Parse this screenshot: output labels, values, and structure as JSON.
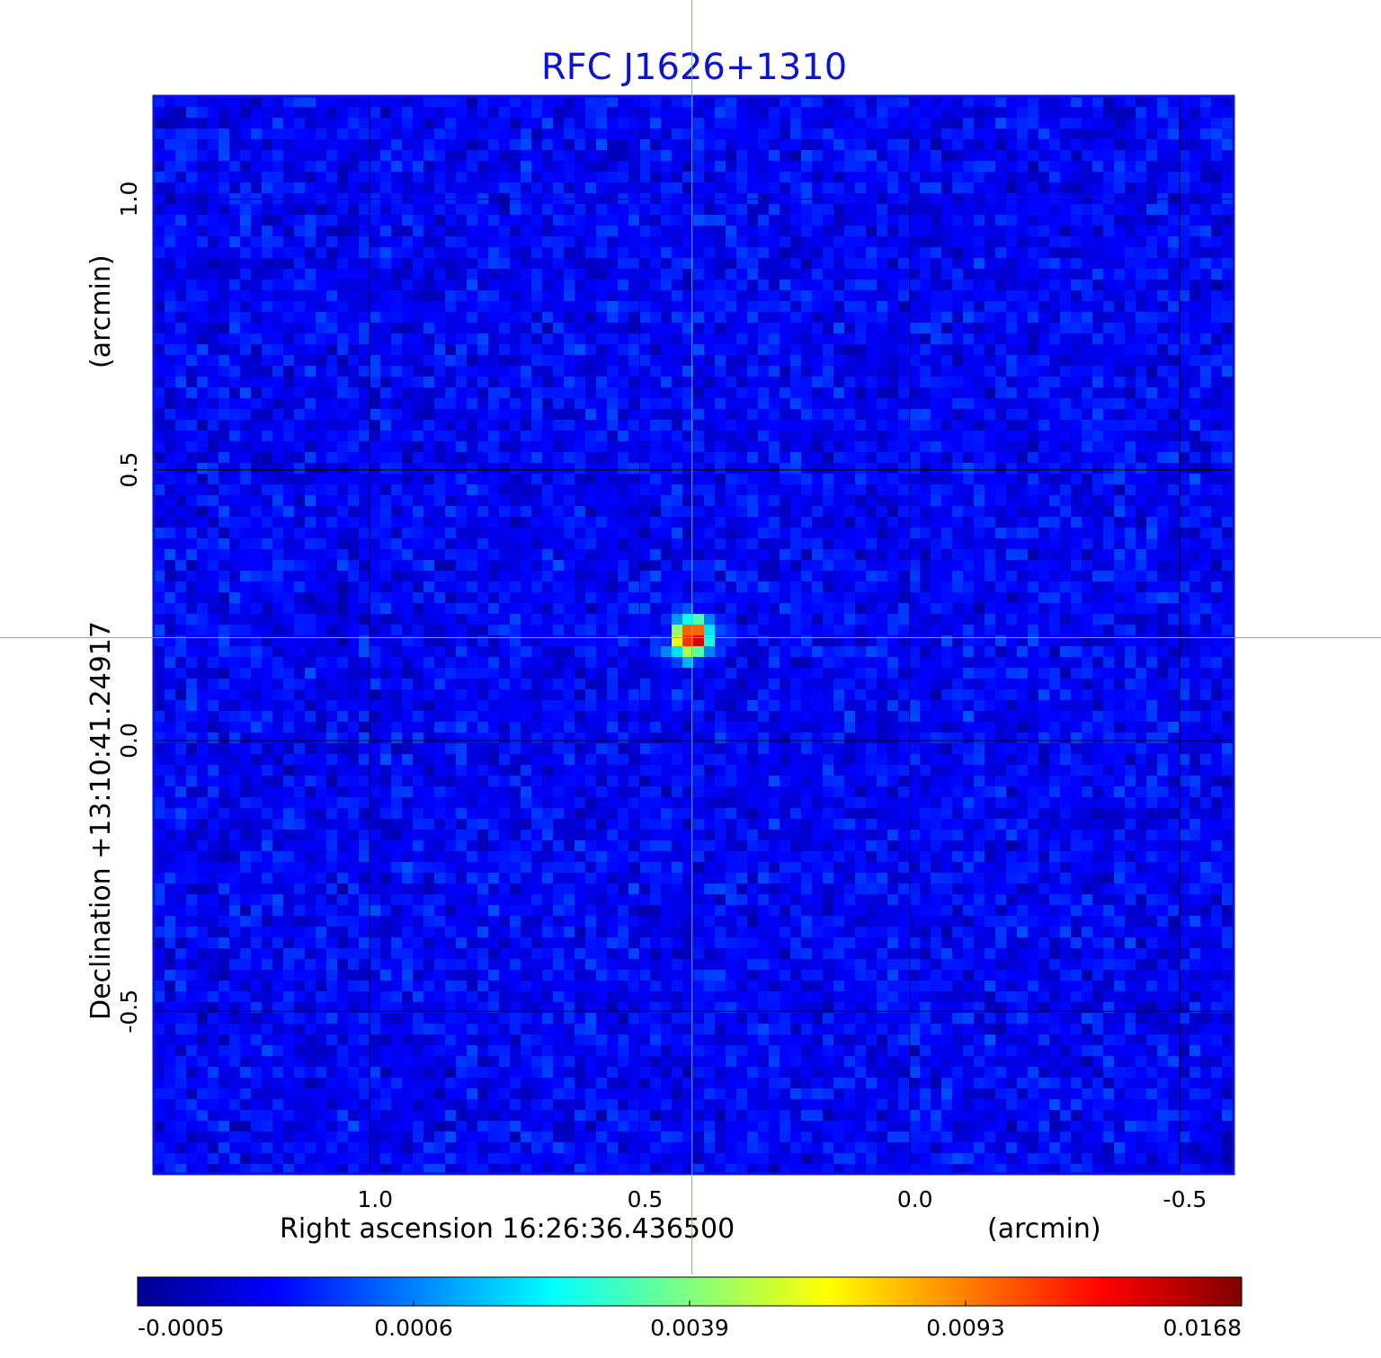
{
  "chart_data": {
    "type": "heatmap",
    "title": "RFC J1626+1310",
    "xlabel": "Right ascension  16:26:36.436500",
    "xunit": "(arcmin)",
    "ylabel": "Declination  +13:10:41.24917",
    "yunit": "(arcmin)",
    "xlim": [
      1.4,
      -0.6
    ],
    "ylim": [
      -0.8,
      1.19
    ],
    "x_ticks": [
      1.0,
      0.5,
      0.0,
      -0.5
    ],
    "x_tick_labels": [
      "1.0",
      "0.5",
      "0.0",
      "-0.5"
    ],
    "y_ticks": [
      1.0,
      0.5,
      0.0,
      -0.5
    ],
    "y_tick_labels": [
      "1.0",
      "0.5",
      "0.0",
      "-0.5"
    ],
    "grid": true,
    "grid_color": "#000000",
    "crosshair": {
      "x": 0.403,
      "y": 0.19,
      "color": "#44dd44"
    },
    "source": {
      "x": 0.403,
      "y": 0.19,
      "peak": 0.0168
    },
    "background_level": 0.0001,
    "colorbar": {
      "position": "bottom",
      "ticks": [
        -0.0005,
        0.0006,
        0.0039,
        0.0093,
        0.0168
      ],
      "tick_labels": [
        "-0.0005",
        "0.0006",
        "0.0039",
        "0.0093",
        "0.0168"
      ],
      "colormap": "jet",
      "colors": [
        "#00008f",
        "#0000ff",
        "#00ffff",
        "#ffff00",
        "#ff0000",
        "#800000"
      ]
    },
    "frame_color": "#0a14d2"
  }
}
